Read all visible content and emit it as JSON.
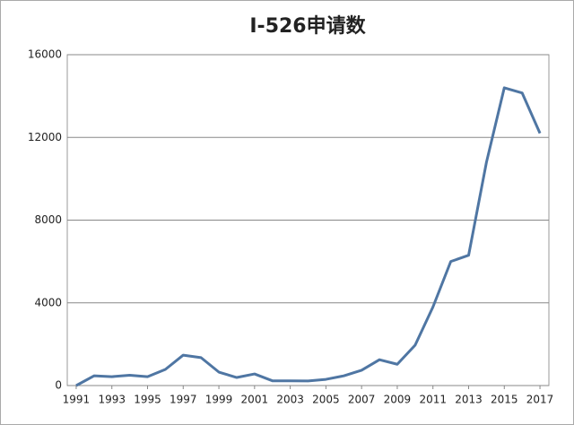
{
  "chart_data": {
    "type": "line",
    "title": "I-526申请数",
    "x": [
      1991,
      1992,
      1993,
      1994,
      1995,
      1996,
      1997,
      1998,
      1999,
      2000,
      2001,
      2002,
      2003,
      2004,
      2005,
      2006,
      2007,
      2008,
      2009,
      2010,
      2011,
      2012,
      2013,
      2014,
      2015,
      2016,
      2017
    ],
    "series": [
      {
        "color": "#4f76a3",
        "values": [
          0,
          470,
          430,
          500,
          430,
          780,
          1470,
          1350,
          650,
          390,
          560,
          230,
          230,
          220,
          300,
          470,
          740,
          1250,
          1030,
          1950,
          3800,
          6000,
          6300,
          10800,
          14400,
          14150,
          12200
        ]
      }
    ],
    "xlim": [
      1990.5,
      2017.5
    ],
    "xticks": [
      1991,
      1993,
      1995,
      1997,
      1999,
      2001,
      2003,
      2005,
      2007,
      2009,
      2011,
      2013,
      2015,
      2017
    ],
    "ylim": [
      0,
      16000
    ],
    "yticks": [
      0,
      4000,
      8000,
      12000,
      16000
    ],
    "grid": true
  }
}
